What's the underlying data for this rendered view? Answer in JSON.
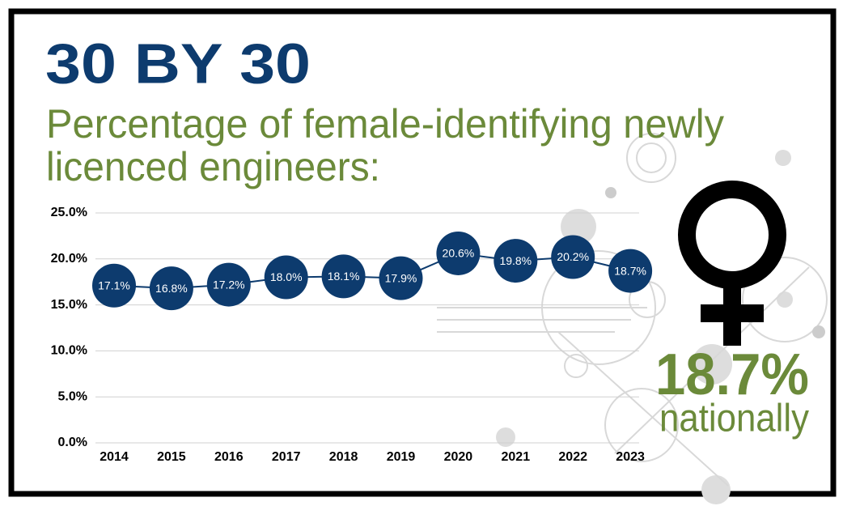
{
  "chart_data": {
    "type": "line",
    "title": "30 BY 30",
    "subtitle": [
      "Percentage of female-identifying newly",
      "licenced engineers:"
    ],
    "categories": [
      "2014",
      "2015",
      "2016",
      "2017",
      "2018",
      "2019",
      "2020",
      "2021",
      "2022",
      "2023"
    ],
    "series": [
      {
        "name": "Female-identifying newly licenced engineers",
        "color": "#0d3b6e",
        "values": [
          17.1,
          16.8,
          17.2,
          18.0,
          18.1,
          17.9,
          20.6,
          19.8,
          20.2,
          18.7
        ],
        "value_labels": [
          "17.1%",
          "16.8%",
          "17.2%",
          "18.0%",
          "18.1%",
          "17.9%",
          "20.6%",
          "19.8%",
          "20.2%",
          "18.7%"
        ]
      }
    ],
    "ylim": [
      0,
      25
    ],
    "yticks": [
      {
        "value": 0,
        "label": "0.0%"
      },
      {
        "value": 5,
        "label": "5.0%"
      },
      {
        "value": 10,
        "label": "10.0%"
      },
      {
        "value": 15,
        "label": "15.0%"
      },
      {
        "value": 20,
        "label": "20.0%"
      },
      {
        "value": 25,
        "label": "25.0%"
      }
    ],
    "grid": true,
    "annotations": [
      "18.7%",
      "nationally"
    ]
  }
}
